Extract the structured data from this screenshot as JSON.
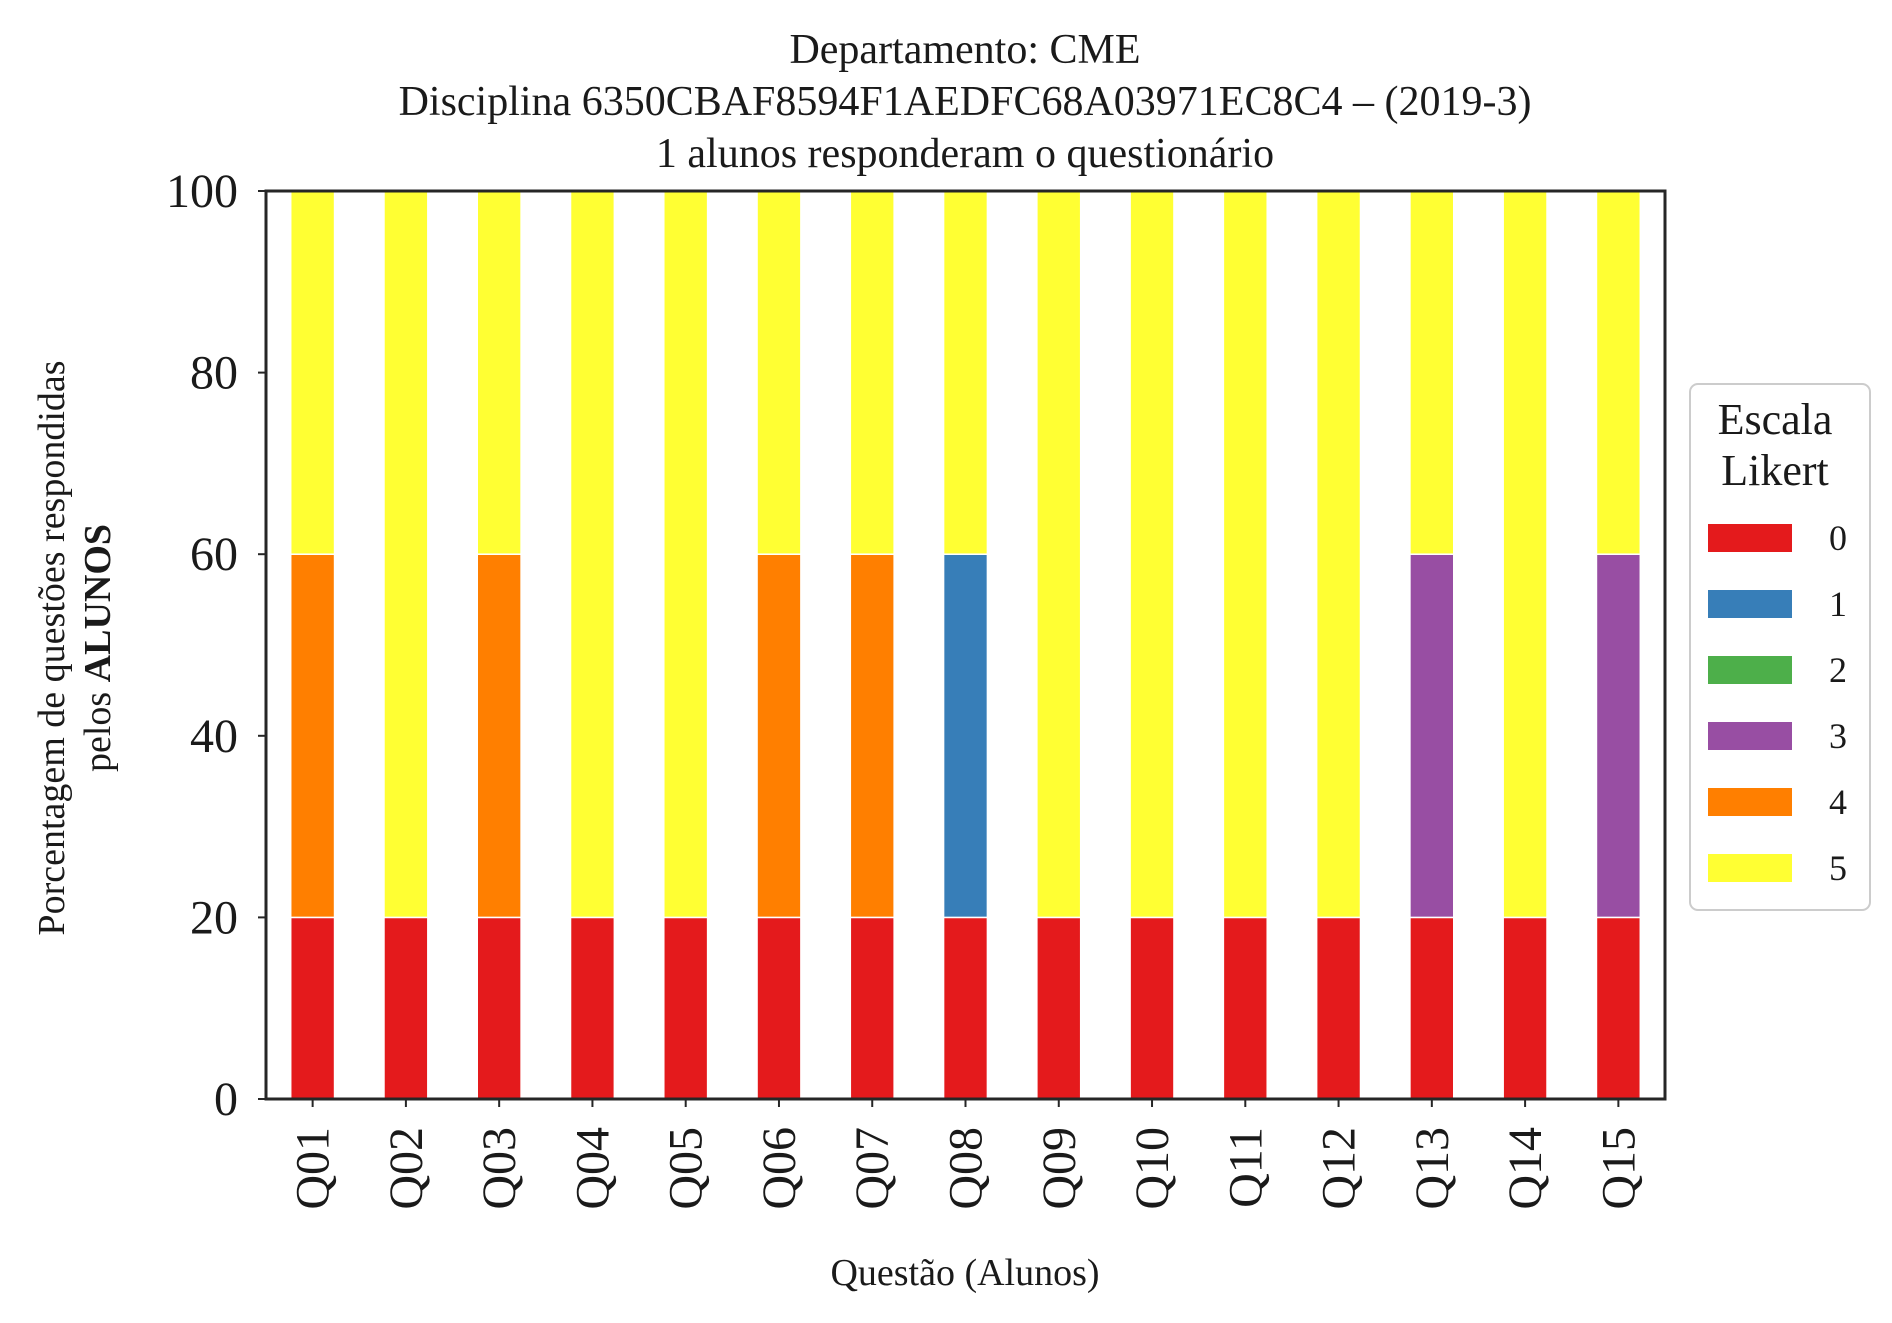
{
  "chart_data": {
    "type": "bar",
    "stacked": true,
    "title_lines": [
      "Departamento: CME",
      "Disciplina 6350CBAF8594F1AEDFC68A03971EC8C4 – (2019-3)",
      "1 alunos responderam o questionário"
    ],
    "xlabel": "Questão (Alunos)",
    "ylabel_line1": "Porcentagem de questões respondidas",
    "ylabel_line2_prefix": "pelos ",
    "ylabel_line2_bold": "ALUNOS",
    "ylim": [
      0,
      100
    ],
    "yticks": [
      "0",
      "20",
      "40",
      "60",
      "80",
      "100"
    ],
    "categories": [
      "Q01",
      "Q02",
      "Q03",
      "Q04",
      "Q05",
      "Q06",
      "Q07",
      "Q08",
      "Q09",
      "Q10",
      "Q11",
      "Q12",
      "Q13",
      "Q14",
      "Q15"
    ],
    "legend": {
      "title_lines": [
        "Escala",
        "Likert"
      ],
      "placement": "right"
    },
    "grid": false,
    "series": [
      {
        "name": "0",
        "color": "#e41a1c",
        "values": [
          20,
          20,
          20,
          20,
          20,
          20,
          20,
          20,
          20,
          20,
          20,
          20,
          20,
          20,
          20
        ]
      },
      {
        "name": "1",
        "color": "#377eb8",
        "values": [
          0,
          0,
          0,
          0,
          0,
          0,
          0,
          40,
          0,
          0,
          0,
          0,
          0,
          0,
          0
        ]
      },
      {
        "name": "2",
        "color": "#4daf4a",
        "values": [
          0,
          0,
          0,
          0,
          0,
          0,
          0,
          0,
          0,
          0,
          0,
          0,
          0,
          0,
          0
        ]
      },
      {
        "name": "3",
        "color": "#984ea3",
        "values": [
          0,
          0,
          0,
          0,
          0,
          0,
          0,
          0,
          0,
          0,
          0,
          0,
          40,
          0,
          40
        ]
      },
      {
        "name": "4",
        "color": "#ff7f00",
        "values": [
          40,
          0,
          40,
          0,
          0,
          40,
          40,
          0,
          0,
          0,
          0,
          0,
          0,
          0,
          0
        ]
      },
      {
        "name": "5",
        "color": "#ffff33",
        "values": [
          40,
          80,
          40,
          80,
          80,
          40,
          40,
          40,
          80,
          80,
          80,
          80,
          40,
          80,
          40
        ]
      }
    ]
  }
}
